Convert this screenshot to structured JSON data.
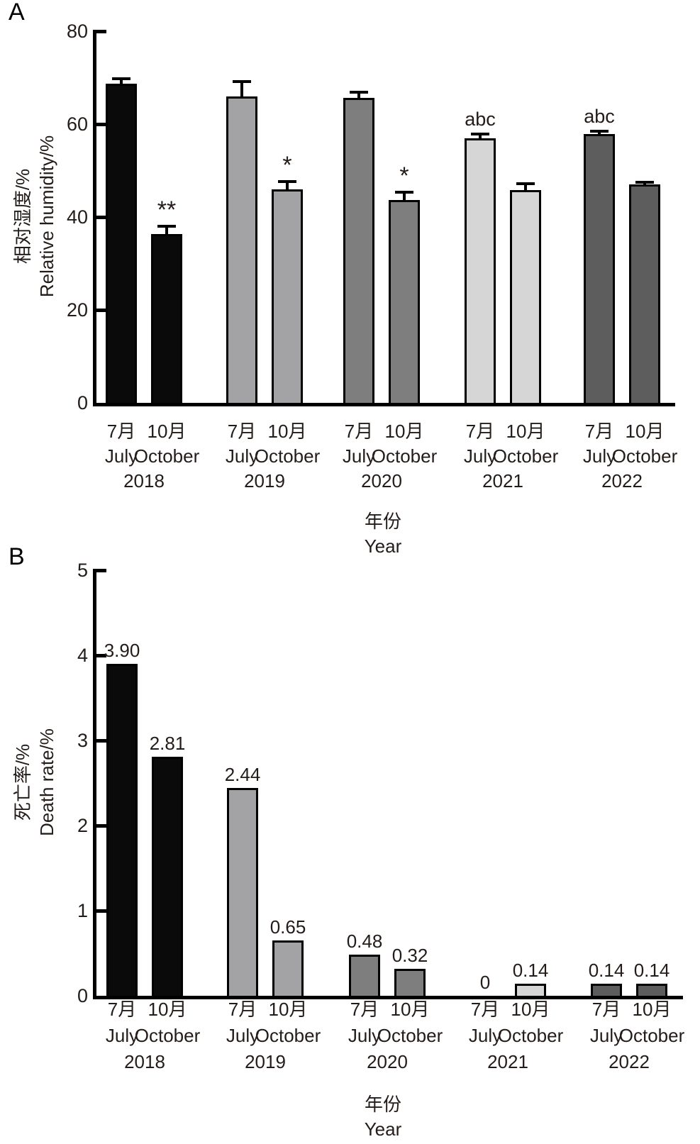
{
  "figure": {
    "background": "#ffffff",
    "bar_border_color": "#000000",
    "axis_color": "#000000"
  },
  "chart_data": [
    {
      "type": "bar",
      "panel_label": "A",
      "title": "",
      "ylabel_zh": "相对湿度/%",
      "ylabel_en": "Relative humidity/%",
      "xlabel_zh": "年份",
      "xlabel_en": "Year",
      "ylim": [
        0,
        80
      ],
      "yticks": [
        0,
        20,
        40,
        60,
        80
      ],
      "grid": false,
      "legend": "none",
      "error_bars": "upper, SE caps",
      "groups": [
        {
          "year": "2018",
          "bar_color": "#0a0a0a",
          "bars": [
            {
              "month_zh": "7月",
              "month_en": "July",
              "value": 68.7,
              "error": 1.4,
              "annotation": ""
            },
            {
              "month_zh": "10月",
              "month_en": "October",
              "value": 36.3,
              "error": 2.0,
              "annotation": "**"
            }
          ]
        },
        {
          "year": "2019",
          "bar_color": "#a3a3a5",
          "bars": [
            {
              "month_zh": "7月",
              "month_en": "July",
              "value": 66.0,
              "error": 3.5,
              "annotation": ""
            },
            {
              "month_zh": "10月",
              "month_en": "October",
              "value": 46.0,
              "error": 2.0,
              "annotation": "*"
            }
          ]
        },
        {
          "year": "2020",
          "bar_color": "#7e7e7e",
          "bars": [
            {
              "month_zh": "7月",
              "month_en": "July",
              "value": 65.6,
              "error": 1.6,
              "annotation": ""
            },
            {
              "month_zh": "10月",
              "month_en": "October",
              "value": 43.7,
              "error": 2.0,
              "annotation": "*"
            }
          ]
        },
        {
          "year": "2021",
          "bar_color": "#d6d6d6",
          "bars": [
            {
              "month_zh": "7月",
              "month_en": "July",
              "value": 56.9,
              "error": 1.3,
              "annotation": "abc"
            },
            {
              "month_zh": "10月",
              "month_en": "October",
              "value": 45.8,
              "error": 1.7,
              "annotation": ""
            }
          ]
        },
        {
          "year": "2022",
          "bar_color": "#5d5d5d",
          "bars": [
            {
              "month_zh": "7月",
              "month_en": "July",
              "value": 57.9,
              "error": 0.9,
              "annotation": "abc"
            },
            {
              "month_zh": "10月",
              "month_en": "October",
              "value": 47.0,
              "error": 0.8,
              "annotation": ""
            }
          ]
        }
      ]
    },
    {
      "type": "bar",
      "panel_label": "B",
      "title": "",
      "ylabel_zh": "死亡率/%",
      "ylabel_en": "Death rate/%",
      "xlabel_zh": "年份",
      "xlabel_en": "Year",
      "ylim": [
        0,
        5
      ],
      "yticks": [
        0,
        1,
        2,
        3,
        4,
        5
      ],
      "grid": false,
      "legend": "none",
      "error_bars": "none",
      "groups": [
        {
          "year": "2018",
          "bar_color": "#0a0a0a",
          "bars": [
            {
              "month_zh": "7月",
              "month_en": "July",
              "value": 3.9,
              "value_label": "3.90"
            },
            {
              "month_zh": "10月",
              "month_en": "October",
              "value": 2.81,
              "value_label": "2.81"
            }
          ]
        },
        {
          "year": "2019",
          "bar_color": "#a3a3a5",
          "bars": [
            {
              "month_zh": "7月",
              "month_en": "July",
              "value": 2.44,
              "value_label": "2.44"
            },
            {
              "month_zh": "10月",
              "month_en": "October",
              "value": 0.65,
              "value_label": "0.65"
            }
          ]
        },
        {
          "year": "2020",
          "bar_color": "#7e7e7e",
          "bars": [
            {
              "month_zh": "7月",
              "month_en": "July",
              "value": 0.48,
              "value_label": "0.48"
            },
            {
              "month_zh": "10月",
              "month_en": "October",
              "value": 0.32,
              "value_label": "0.32"
            }
          ]
        },
        {
          "year": "2021",
          "bar_color": "#d6d6d6",
          "bars": [
            {
              "month_zh": "7月",
              "month_en": "July",
              "value": 0,
              "value_label": "0"
            },
            {
              "month_zh": "10月",
              "month_en": "October",
              "value": 0.14,
              "value_label": "0.14"
            }
          ]
        },
        {
          "year": "2022",
          "bar_color": "#5d5d5d",
          "bars": [
            {
              "month_zh": "7月",
              "month_en": "July",
              "value": 0.14,
              "value_label": "0.14"
            },
            {
              "month_zh": "10月",
              "month_en": "October",
              "value": 0.14,
              "value_label": "0.14"
            }
          ]
        }
      ]
    }
  ]
}
